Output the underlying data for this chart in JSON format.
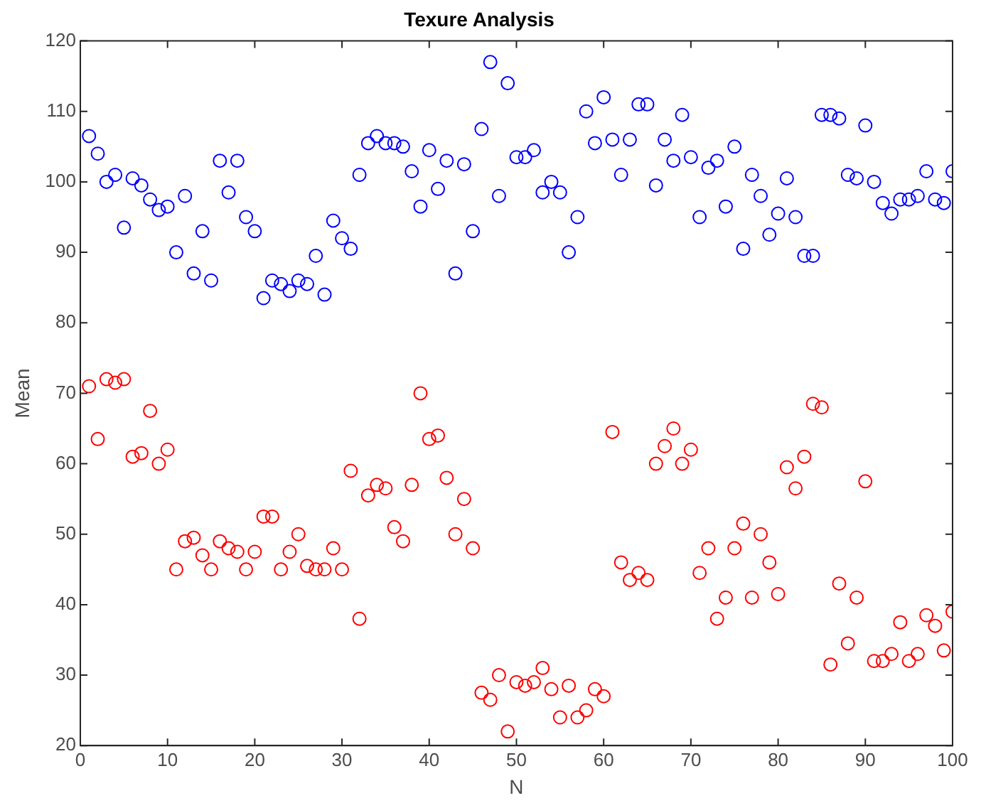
{
  "chart_data": {
    "type": "scatter",
    "title": "Texure Analysis",
    "xlabel": "N",
    "ylabel": "Mean",
    "marker": "circle",
    "grid": false,
    "legend": false,
    "x": [
      1,
      2,
      3,
      4,
      5,
      6,
      7,
      8,
      9,
      10,
      11,
      12,
      13,
      14,
      15,
      16,
      17,
      18,
      19,
      20,
      21,
      22,
      23,
      24,
      25,
      26,
      27,
      28,
      29,
      30,
      31,
      32,
      33,
      34,
      35,
      36,
      37,
      38,
      39,
      40,
      41,
      42,
      43,
      44,
      45,
      46,
      47,
      48,
      49,
      50,
      51,
      52,
      53,
      54,
      55,
      56,
      57,
      58,
      59,
      60,
      61,
      62,
      63,
      64,
      65,
      66,
      67,
      68,
      69,
      70,
      71,
      72,
      73,
      74,
      75,
      76,
      77,
      78,
      79,
      80,
      81,
      82,
      83,
      84,
      85,
      86,
      87,
      88,
      89,
      90,
      91,
      92,
      93,
      94,
      95,
      96,
      97,
      98,
      99,
      100
    ],
    "xlim": [
      0,
      100
    ],
    "xticks": [
      0,
      10,
      20,
      30,
      40,
      50,
      60,
      70,
      80,
      90,
      100
    ],
    "ylim": [
      20,
      120
    ],
    "yticks": [
      20,
      30,
      40,
      50,
      60,
      70,
      80,
      90,
      100,
      110,
      120
    ],
    "series": [
      {
        "color": "#0000ff",
        "values": [
          106.5,
          104,
          100,
          101,
          93.5,
          100.5,
          99.5,
          97.5,
          96,
          96.5,
          90,
          98,
          87,
          93,
          86,
          103,
          98.5,
          103,
          95,
          93,
          83.5,
          86,
          85.5,
          84.5,
          86,
          85.5,
          89.5,
          84,
          94.5,
          92,
          90.5,
          101,
          105.5,
          106.5,
          105.5,
          105.5,
          105,
          101.5,
          96.5,
          104.5,
          99,
          103,
          87,
          102.5,
          93,
          107.5,
          117,
          98,
          114,
          103.5,
          103.5,
          104.5,
          98.5,
          100,
          98.5,
          90,
          95,
          110,
          105.5,
          112,
          106,
          101,
          106,
          111,
          111,
          99.5,
          106,
          103,
          109.5,
          103.5,
          95,
          102,
          103,
          96.5,
          105,
          90.5,
          101,
          98,
          92.5,
          95.5,
          100.5,
          95,
          89.5,
          89.5,
          109.5,
          109.5,
          109,
          101,
          100.5,
          108,
          100,
          97,
          95.5,
          97.5,
          97.5,
          98,
          101.5,
          97.5,
          97,
          101.5
        ]
      },
      {
        "color": "#ff0000",
        "values": [
          71,
          63.5,
          72,
          71.5,
          72,
          61,
          61.5,
          67.5,
          60,
          62,
          45,
          49,
          49.5,
          47,
          45,
          49,
          48,
          47.5,
          45,
          47.5,
          52.5,
          52.5,
          45,
          47.5,
          50,
          45.5,
          45,
          45,
          48,
          45,
          59,
          38,
          55.5,
          57,
          56.5,
          51,
          49,
          57,
          70,
          63.5,
          64,
          58,
          50,
          55,
          48,
          27.5,
          26.5,
          30,
          22,
          29,
          28.5,
          29,
          31,
          28,
          24,
          28.5,
          24,
          25,
          28,
          27,
          64.5,
          46,
          43.5,
          44.5,
          43.5,
          60,
          62.5,
          65,
          60,
          62,
          44.5,
          48,
          38,
          41,
          48,
          51.5,
          41,
          50,
          46,
          41.5,
          59.5,
          56.5,
          61,
          68.5,
          68,
          31.5,
          43,
          34.5,
          41,
          57.5,
          32,
          32,
          33,
          37.5,
          32,
          33,
          38.5,
          37,
          33.5,
          39
        ]
      }
    ]
  }
}
